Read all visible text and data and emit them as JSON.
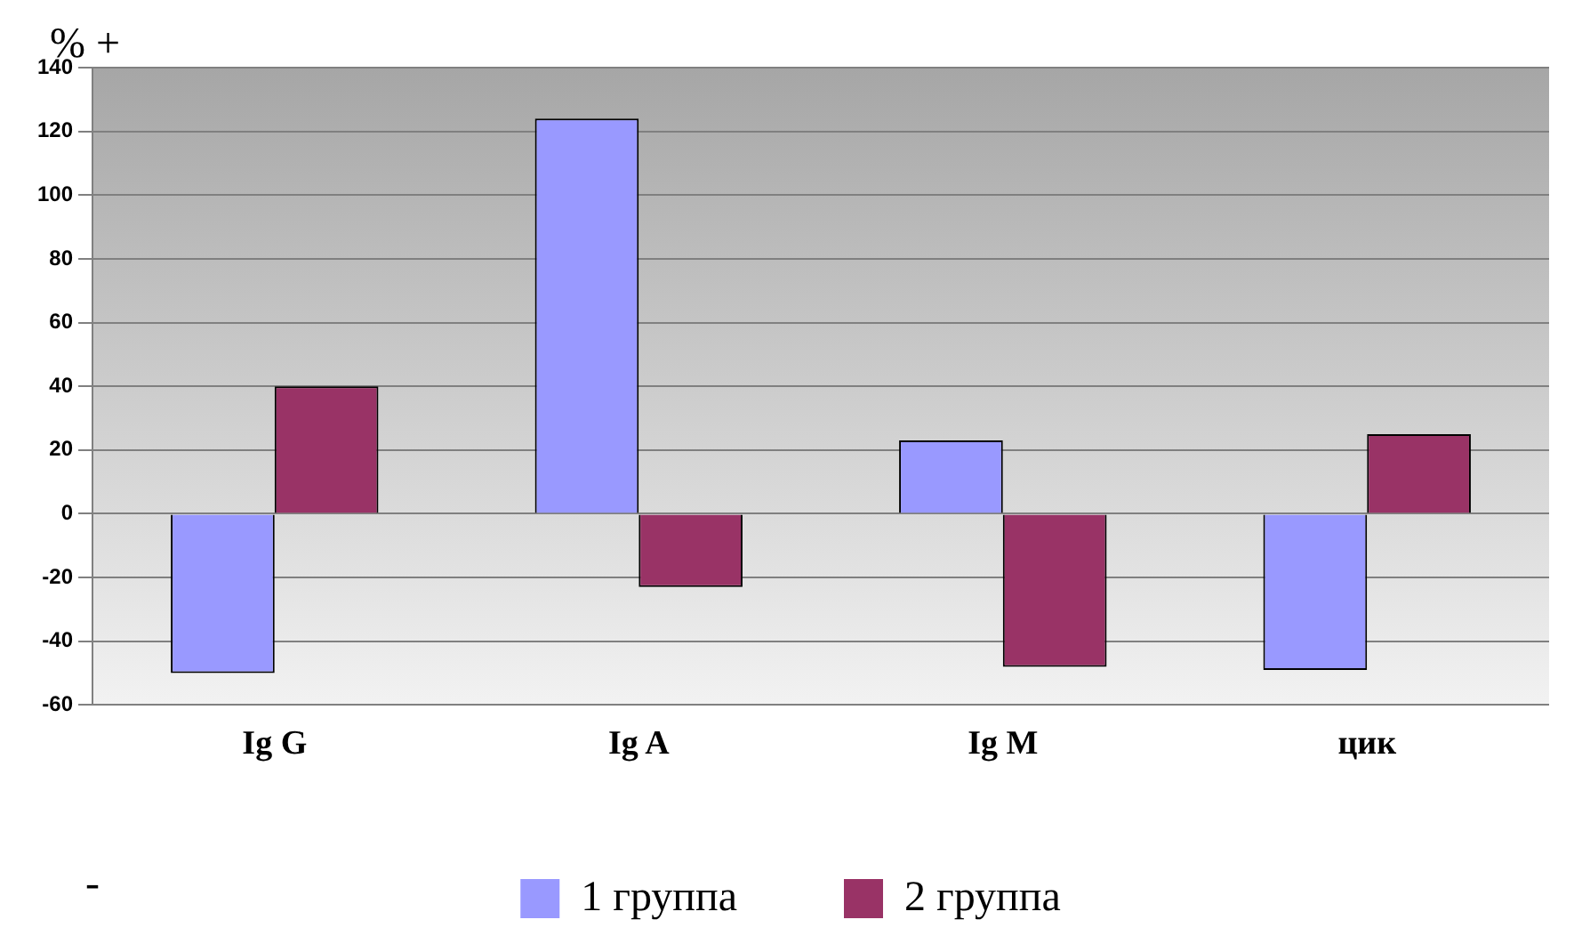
{
  "chart_data": {
    "type": "bar",
    "categories": [
      "Ig G",
      "Ig A",
      "Ig M",
      "цик"
    ],
    "series": [
      {
        "name": "1 группа",
        "color": "#9999ff",
        "values": [
          -50,
          124,
          23,
          -49
        ]
      },
      {
        "name": "2 группа",
        "color": "#993366",
        "values": [
          40,
          -23,
          -48,
          25
        ]
      }
    ],
    "ylim": [
      -60,
      140
    ],
    "yticks": [
      -60,
      -40,
      -20,
      0,
      20,
      40,
      60,
      80,
      100,
      120,
      140
    ],
    "grid": "y",
    "legend": "bottom",
    "annotations": [
      "% +",
      "-"
    ]
  }
}
